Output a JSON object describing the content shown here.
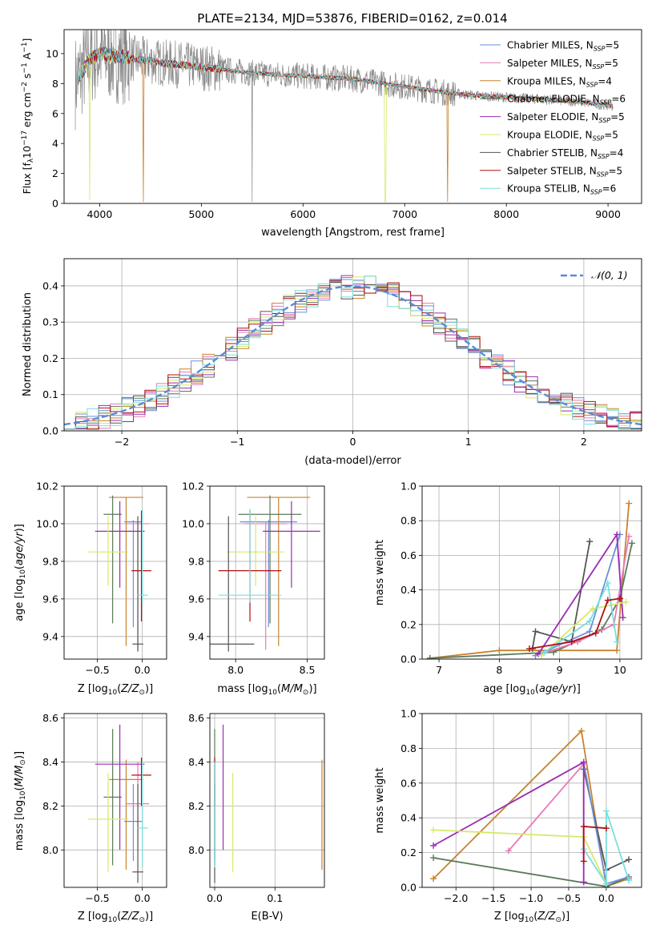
{
  "title": "PLATE=2134, MJD=53876, FIBERID=0162, z=0.014",
  "colors": {
    "Chabrier MILES": "#6b8fd6",
    "Salpeter MILES": "#e87ab8",
    "Kroupa MILES": "#c8822e",
    "Chabrier ELODIE": "#5a7a5a",
    "Salpeter ELODIE": "#9a2db0",
    "Kroupa ELODIE": "#d8e86a",
    "Chabrier STELIB": "#555555",
    "Salpeter STELIB": "#b01010",
    "Kroupa STELIB": "#7adede",
    "gaussian": "#5b8ad8",
    "data": "#888888"
  },
  "chart_data": [
    {
      "id": "spectrum",
      "type": "line",
      "xlabel": "wavelength [Angstrom, rest frame]",
      "ylabel": "Flux [f_λ 10^-17 erg cm^-2 s^-1 A^-1]",
      "xlim": [
        3650,
        9330
      ],
      "ylim": [
        0,
        11.6
      ],
      "xticks": [
        4000,
        5000,
        6000,
        7000,
        8000,
        9000
      ],
      "yticks": [
        0,
        2,
        4,
        6,
        8,
        10
      ],
      "continuum": {
        "x": [
          3750,
          3900,
          4000,
          4300,
          4600,
          5000,
          5500,
          6000,
          6500,
          7000,
          7400,
          7700,
          8200,
          8700,
          9050
        ],
        "y": [
          8.0,
          9.6,
          10.0,
          9.7,
          9.4,
          9.1,
          8.7,
          8.5,
          8.3,
          7.8,
          7.4,
          7.2,
          7.0,
          6.8,
          6.5
        ]
      },
      "legend": [
        {
          "label": "Chabrier MILES, N_SSP=5"
        },
        {
          "label": "Salpeter MILES, N_SSP=5"
        },
        {
          "label": "Kroupa MILES, N_SSP=4"
        },
        {
          "label": "Chabrier ELODIE, N_SSP=6"
        },
        {
          "label": "Salpeter ELODIE, N_SSP=5"
        },
        {
          "label": "Kroupa ELODIE, N_SSP=5"
        },
        {
          "label": "Chabrier STELIB, N_SSP=4"
        },
        {
          "label": "Salpeter STELIB, N_SSP=5"
        },
        {
          "label": "Kroupa STELIB, N_SSP=6"
        }
      ],
      "legend_placement": "top-right",
      "grid": false
    },
    {
      "id": "residuals",
      "type": "histogram",
      "xlabel": "(data-model)/error",
      "ylabel": "Normed distribution",
      "xlim": [
        -2.5,
        2.5
      ],
      "ylim": [
        0,
        0.475
      ],
      "xticks": [
        -2,
        -1,
        0,
        1,
        2
      ],
      "yticks": [
        0.0,
        0.1,
        0.2,
        0.3,
        0.4
      ],
      "bin_width": 0.1,
      "gaussian_label": "𝒩(0, 1)",
      "grid": true
    },
    {
      "id": "age_vs_Z",
      "type": "errorbar",
      "xlabel": "Z [log10(Z/Z☉)]",
      "ylabel": "age [log10(age/yr)]",
      "xlim": [
        -0.87,
        0.27
      ],
      "ylim": [
        9.28,
        10.2
      ],
      "xticks": [
        -0.5,
        0.0
      ],
      "yticks": [
        9.4,
        9.6,
        9.8,
        10.0,
        10.2
      ],
      "grid": true
    },
    {
      "id": "age_vs_mass",
      "type": "errorbar",
      "xlabel": "mass [log10(M/M☉)]",
      "ylabel": "",
      "xlim": [
        7.82,
        8.62
      ],
      "ylim": [
        9.28,
        10.2
      ],
      "xticks": [
        8.0,
        8.5
      ],
      "yticks": [
        9.4,
        9.6,
        9.8,
        10.0,
        10.2
      ],
      "grid": true
    },
    {
      "id": "weight_vs_age",
      "type": "line",
      "xlabel": "age [log10(age/yr)]",
      "ylabel": "mass weight",
      "xlim": [
        6.72,
        10.36
      ],
      "ylim": [
        0,
        1.0
      ],
      "xticks": [
        7,
        8,
        9,
        10
      ],
      "yticks": [
        0.0,
        0.2,
        0.4,
        0.6,
        0.8,
        1.0
      ],
      "grid": true,
      "series": [
        {
          "key": "Kroupa MILES",
          "x": [
            6.85,
            8.0,
            9.95,
            10.15
          ],
          "y": [
            0.005,
            0.05,
            0.05,
            0.9
          ]
        },
        {
          "key": "Chabrier ELODIE",
          "x": [
            6.85,
            8.9,
            9.7,
            10.0,
            10.2
          ],
          "y": [
            0.005,
            0.04,
            0.17,
            0.35,
            0.67
          ]
        },
        {
          "key": "Chabrier STELIB",
          "x": [
            8.55,
            8.6,
            9.2,
            9.5
          ],
          "y": [
            0.06,
            0.16,
            0.1,
            0.68
          ]
        },
        {
          "key": "Salpeter MILES",
          "x": [
            8.7,
            9.3,
            9.9,
            10.15
          ],
          "y": [
            0.03,
            0.1,
            0.2,
            0.71
          ]
        },
        {
          "key": "Chabrier MILES",
          "x": [
            8.6,
            9.5,
            10.0
          ],
          "y": [
            0.02,
            0.16,
            0.72
          ]
        },
        {
          "key": "Salpeter ELODIE",
          "x": [
            8.65,
            9.95,
            10.05
          ],
          "y": [
            0.03,
            0.72,
            0.24
          ]
        },
        {
          "key": "Kroupa ELODIE",
          "x": [
            8.7,
            9.55,
            10.1
          ],
          "y": [
            0.02,
            0.29,
            0.33
          ]
        },
        {
          "key": "Kroupa STELIB",
          "x": [
            8.75,
            9.5,
            9.8,
            9.95
          ],
          "y": [
            0.04,
            0.22,
            0.44,
            0.1
          ]
        },
        {
          "key": "Salpeter STELIB",
          "x": [
            8.5,
            9.2,
            9.6,
            9.8,
            10.0
          ],
          "y": [
            0.06,
            0.1,
            0.15,
            0.34,
            0.35
          ]
        }
      ]
    },
    {
      "id": "mass_vs_Z",
      "type": "errorbar",
      "xlabel": "Z [log10(Z/Z☉)]",
      "ylabel": "mass [log10(M/M☉)]",
      "xlim": [
        -0.87,
        0.27
      ],
      "ylim": [
        7.83,
        8.62
      ],
      "xticks": [
        -0.5,
        0.0
      ],
      "yticks": [
        8.0,
        8.2,
        8.4,
        8.6
      ],
      "grid": true
    },
    {
      "id": "mass_vs_ebv",
      "type": "errorbar",
      "xlabel": "E(B-V)",
      "ylabel": "",
      "xlim": [
        -0.008,
        0.182
      ],
      "ylim": [
        7.83,
        8.62
      ],
      "xticks": [
        0.0,
        0.1
      ],
      "yticks": [
        8.0,
        8.2,
        8.4,
        8.6
      ],
      "grid": true
    },
    {
      "id": "weight_vs_Z",
      "type": "line",
      "xlabel": "Z [log10(Z/Z☉)]",
      "ylabel": "mass weight",
      "xlim": [
        -2.45,
        0.47
      ],
      "ylim": [
        0,
        1.0
      ],
      "xticks": [
        -2.0,
        -1.5,
        -1.0,
        -0.5,
        0.0
      ],
      "yticks": [
        0.0,
        0.2,
        0.4,
        0.6,
        0.8,
        1.0
      ],
      "grid": true,
      "series": [
        {
          "key": "Kroupa MILES",
          "x": [
            -2.3,
            -0.33,
            0.0,
            0.3
          ],
          "y": [
            0.05,
            0.9,
            0.005,
            0.05
          ]
        },
        {
          "key": "Chabrier ELODIE",
          "x": [
            -2.3,
            0.0,
            0.3
          ],
          "y": [
            0.17,
            0.005,
            0.06
          ]
        },
        {
          "key": "Chabrier STELIB",
          "x": [
            -0.3,
            0.0,
            0.3
          ],
          "y": [
            0.68,
            0.1,
            0.16
          ]
        },
        {
          "key": "Salpeter MILES",
          "x": [
            -1.3,
            -0.3,
            -0.3
          ],
          "y": [
            0.21,
            0.71,
            0.2
          ]
        },
        {
          "key": "Chabrier MILES",
          "x": [
            -0.3,
            0.0,
            0.3
          ],
          "y": [
            0.72,
            0.02,
            0.06
          ]
        },
        {
          "key": "Salpeter ELODIE",
          "x": [
            -2.3,
            -0.3,
            -0.3
          ],
          "y": [
            0.24,
            0.72,
            0.03
          ]
        },
        {
          "key": "Kroupa ELODIE",
          "x": [
            -2.3,
            -0.3,
            0.0
          ],
          "y": [
            0.33,
            0.29,
            0.02
          ]
        },
        {
          "key": "Kroupa STELIB",
          "x": [
            -0.3,
            0.0,
            0.0,
            0.3
          ],
          "y": [
            0.22,
            0.02,
            0.44,
            0.04
          ]
        },
        {
          "key": "Salpeter STELIB",
          "x": [
            -0.3,
            -0.3,
            0.0
          ],
          "y": [
            0.15,
            0.35,
            0.34
          ]
        }
      ]
    }
  ],
  "errorbars": {
    "Kroupa MILES": {
      "Z": -0.18,
      "Zerr": 0.38,
      "age": 10.14,
      "ageerr": 0.0,
      "mass": 8.32,
      "masserr": 0.0,
      "mass_x": 8.3,
      "mass_xerr": 0.22,
      "ebv": 0.178,
      "ebv_massspan": [
        7.91,
        8.41
      ]
    },
    "Chabrier ELODIE": {
      "Z": -0.33,
      "Zerr": 0.2,
      "age": 10.05,
      "ageerr": 0.0,
      "mass": 8.24,
      "masserr": 0.0,
      "mass_x": 8.24,
      "mass_xerr": 0.22,
      "ebv": 0.0,
      "ebv_massspan": [
        7.93,
        8.55
      ]
    },
    "Chabrier STELIB": {
      "Z": -0.05,
      "Zerr": 0.12,
      "age": 9.36,
      "ageerr": 0.0,
      "mass": 7.9,
      "masserr": 0.0,
      "mass_x": 7.95,
      "mass_xerr": 0.18,
      "ebv": 0.0,
      "ebv_massspan": [
        7.85,
        8.3
      ]
    },
    "Salpeter MILES": {
      "Z": -0.05,
      "Zerr": 0.25,
      "age": 10.0,
      "ageerr": 0.0,
      "mass": 8.21,
      "masserr": 0.0,
      "mass_x": 8.21,
      "mass_xerr": 0.15,
      "ebv": 0.0,
      "ebv_massspan": [
        8.0,
        8.4
      ]
    },
    "Chabrier MILES": {
      "Z": -0.1,
      "Zerr": 0.2,
      "age": 10.01,
      "ageerr": 0.0,
      "mass": 8.13,
      "masserr": 0.0,
      "mass_x": 8.23,
      "mass_xerr": 0.2,
      "ebv": 0.0,
      "ebv_massspan": [
        7.95,
        8.3
      ]
    },
    "Salpeter ELODIE": {
      "Z": -0.25,
      "Zerr": 0.55,
      "age": 9.96,
      "ageerr": 0.0,
      "mass": 8.39,
      "masserr": 0.0,
      "mass_x": 8.39,
      "mass_xerr": 0.2,
      "ebv": 0.014,
      "ebv_massspan": [
        8.0,
        8.57
      ]
    },
    "Kroupa ELODIE": {
      "Z": -0.38,
      "Zerr": 0.45,
      "age": 9.85,
      "ageerr": 0.0,
      "mass": 8.14,
      "masserr": 0.0,
      "mass_x": 8.14,
      "mass_xerr": 0.2,
      "ebv": 0.03,
      "ebv_massspan": [
        7.9,
        8.35
      ]
    },
    "Kroupa STELIB": {
      "Z": 0.0,
      "Zerr": 0.12,
      "age": 9.62,
      "ageerr": 0.0,
      "mass": 8.1,
      "masserr": 0.0,
      "mass_x": 8.1,
      "mass_xerr": 0.22,
      "ebv": 0.0,
      "ebv_massspan": [
        7.92,
        8.4
      ]
    },
    "Salpeter STELIB": {
      "Z": -0.01,
      "Zerr": 0.22,
      "age": 9.75,
      "ageerr": 0.0,
      "mass": 8.34,
      "masserr": 0.0,
      "mass_x": 8.1,
      "mass_xerr": 0.22,
      "ebv": 0.0,
      "ebv_massspan": [
        8.2,
        8.42
      ]
    }
  },
  "age_vbars": {
    "Kroupa MILES": [
      9.35,
      10.14
    ],
    "Chabrier ELODIE": [
      9.47,
      10.15
    ],
    "Chabrier STELIB": [
      9.32,
      10.04
    ],
    "Salpeter MILES": [
      9.33,
      10.01
    ],
    "Chabrier MILES": [
      9.45,
      10.02
    ],
    "Salpeter ELODIE": [
      9.66,
      10.12
    ],
    "Kroupa ELODIE": [
      9.67,
      10.04
    ],
    "Kroupa STELIB": [
      9.58,
      10.08
    ],
    "Salpeter STELIB": [
      9.48,
      10.07
    ]
  }
}
